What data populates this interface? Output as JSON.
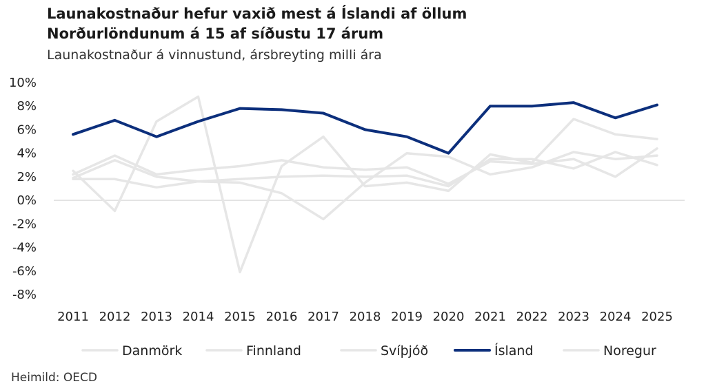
{
  "header": {
    "title_line1": "Launakostnaður hefur vaxið mest á Íslandi af öllum",
    "title_line2": "Norðurlöndunum á 15 af síðustu 17 árum",
    "subtitle": "Launakostnaður á vinnustund, ársbreyting milli ára"
  },
  "source": "Heimild: OECD",
  "colors": {
    "highlight": "#0c2f7c",
    "others": "#e6e6e6",
    "zero_line": "#d9d9d9"
  },
  "chart_data": {
    "type": "line",
    "title": "Launakostnaður hefur vaxið mest á Íslandi af öllum Norðurlöndunum á 15 af síðustu 17 árum",
    "subtitle": "Launakostnaður á vinnustund, ársbreyting milli ára",
    "x": [
      "2011",
      "2012",
      "2013",
      "2014",
      "2015",
      "2016",
      "2017",
      "2018",
      "2019",
      "2020",
      "2021",
      "2022",
      "2023",
      "2024",
      "2025"
    ],
    "y_ticks": [
      "10%",
      "8%",
      "6%",
      "4%",
      "2%",
      "0%",
      "-2%",
      "-4%",
      "-6%",
      "-8%"
    ],
    "ylim": [
      -8,
      10
    ],
    "grid": false,
    "legend_position": "bottom",
    "series": [
      {
        "name": "Danmörk",
        "color": "#e6e6e6",
        "values": [
          2.5,
          -0.9,
          6.7,
          8.8,
          -6.1,
          2.9,
          5.4,
          1.2,
          1.5,
          0.8,
          3.9,
          3.2,
          6.9,
          5.6,
          5.2
        ]
      },
      {
        "name": "Finnland",
        "color": "#e6e6e6",
        "values": [
          1.9,
          3.4,
          2.0,
          1.6,
          1.5,
          0.6,
          -1.6,
          1.5,
          4.0,
          3.7,
          2.2,
          2.8,
          4.1,
          3.5,
          3.8
        ]
      },
      {
        "name": "Svíþjóð",
        "color": "#e6e6e6",
        "values": [
          2.2,
          3.8,
          2.2,
          2.6,
          2.9,
          3.4,
          2.8,
          2.6,
          2.8,
          1.4,
          3.3,
          3.1,
          3.5,
          2.0,
          4.4
        ]
      },
      {
        "name": "Ísland",
        "color": "#0c2f7c",
        "values": [
          5.6,
          6.8,
          5.4,
          6.7,
          7.8,
          7.7,
          7.4,
          6.0,
          5.4,
          4.0,
          8.0,
          8.0,
          8.3,
          7.0,
          8.1
        ]
      },
      {
        "name": "Noregur",
        "color": "#e6e6e6",
        "values": [
          1.8,
          1.8,
          1.1,
          1.6,
          1.8,
          2.0,
          2.1,
          2.0,
          2.1,
          1.2,
          3.5,
          3.5,
          2.7,
          4.1,
          3.0
        ]
      }
    ]
  }
}
